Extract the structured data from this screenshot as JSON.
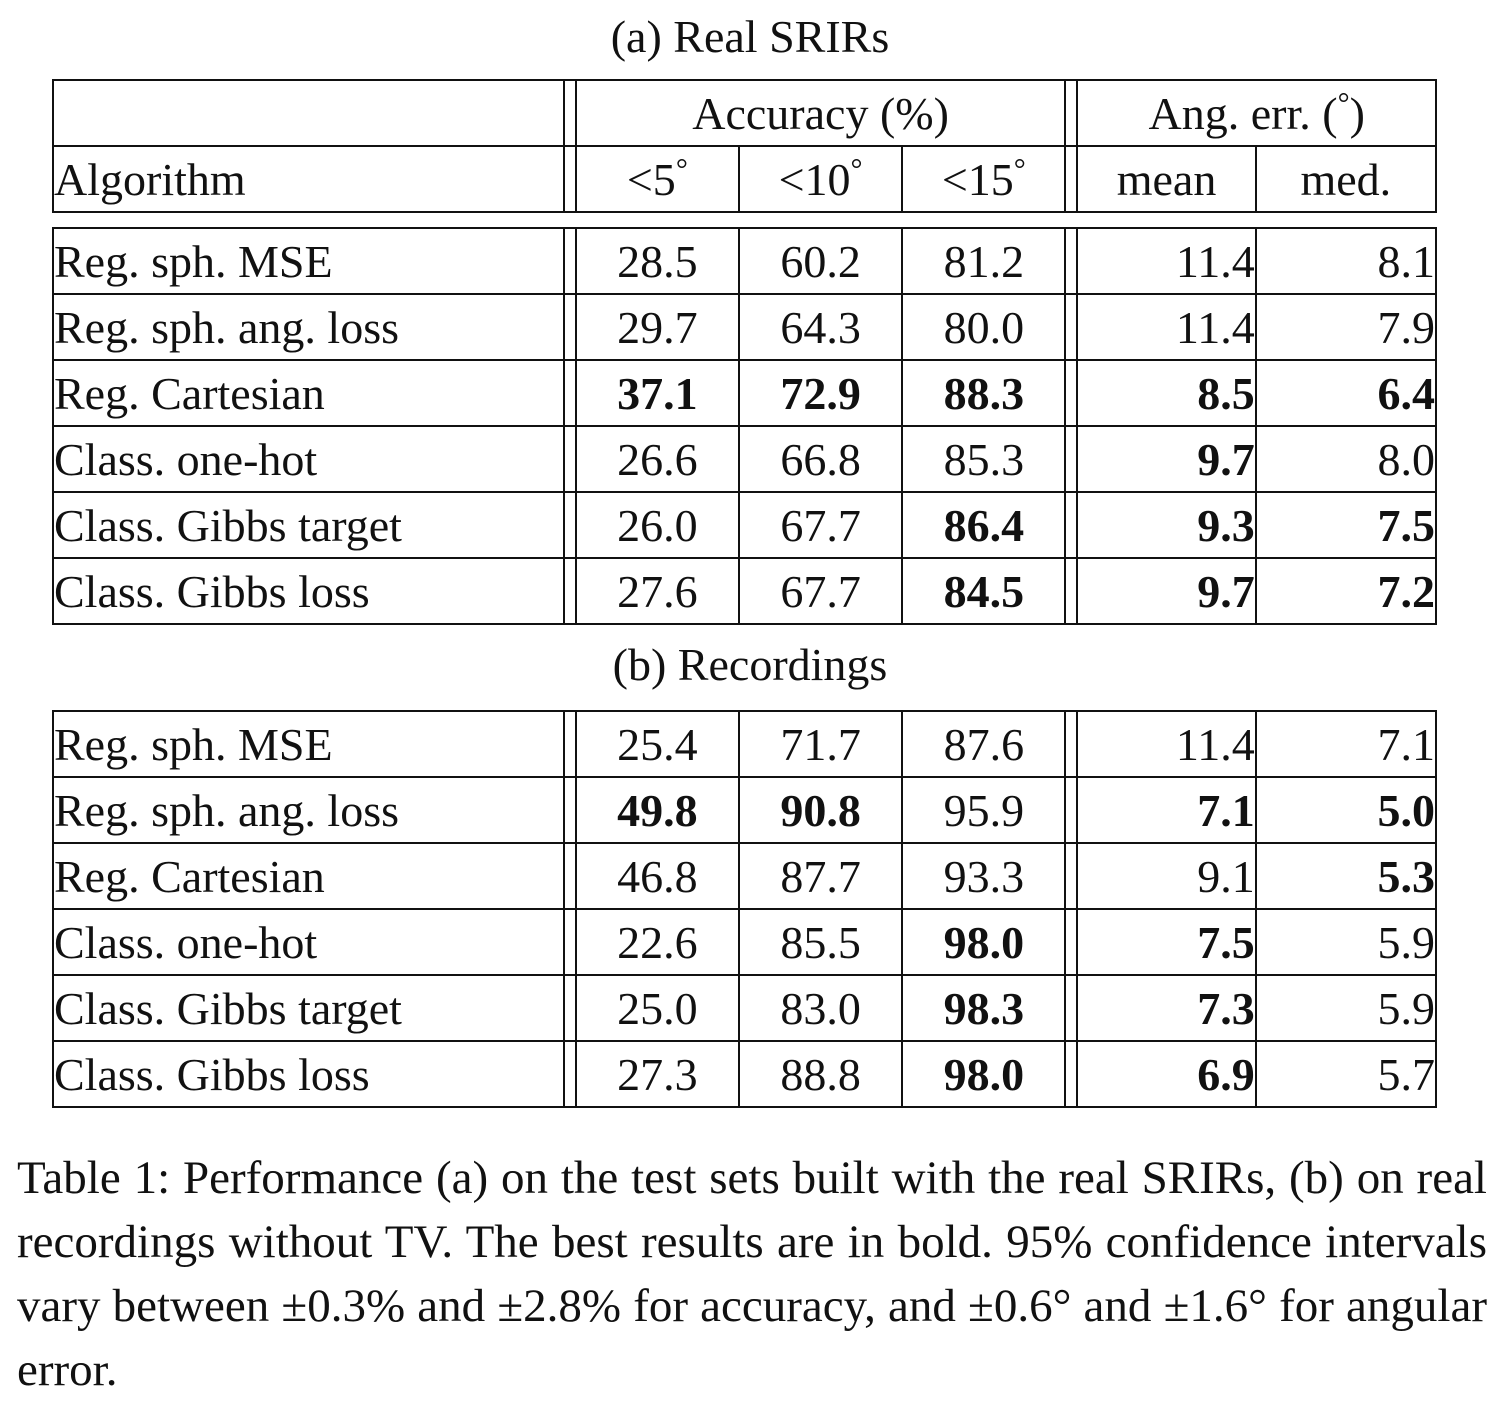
{
  "title_a": "(a) Real SRIRs",
  "title_b": "(b) Recordings",
  "header": {
    "group_accuracy": "Accuracy (%)",
    "group_angerr": "Ang. err. (°)",
    "algorithm": "Algorithm",
    "acc5": "<5°",
    "acc10": "<10°",
    "acc15": "<15°",
    "mean": "mean",
    "med": "med."
  },
  "table_a": [
    {
      "alg": "Reg. sph. MSE",
      "vals": [
        "28.5",
        "60.2",
        "81.2",
        "11.4",
        "8.1"
      ],
      "bold": [
        false,
        false,
        false,
        false,
        false
      ]
    },
    {
      "alg": "Reg. sph. ang. loss",
      "vals": [
        "29.7",
        "64.3",
        "80.0",
        "11.4",
        "7.9"
      ],
      "bold": [
        false,
        false,
        false,
        false,
        false
      ]
    },
    {
      "alg": "Reg. Cartesian",
      "vals": [
        "37.1",
        "72.9",
        "88.3",
        "8.5",
        "6.4"
      ],
      "bold": [
        true,
        true,
        true,
        true,
        true
      ]
    },
    {
      "alg": "Class. one-hot",
      "vals": [
        "26.6",
        "66.8",
        "85.3",
        "9.7",
        "8.0"
      ],
      "bold": [
        false,
        false,
        false,
        true,
        false
      ]
    },
    {
      "alg": "Class. Gibbs target",
      "vals": [
        "26.0",
        "67.7",
        "86.4",
        "9.3",
        "7.5"
      ],
      "bold": [
        false,
        false,
        true,
        true,
        true
      ]
    },
    {
      "alg": "Class. Gibbs loss",
      "vals": [
        "27.6",
        "67.7",
        "84.5",
        "9.7",
        "7.2"
      ],
      "bold": [
        false,
        false,
        true,
        true,
        true
      ]
    }
  ],
  "table_b": [
    {
      "alg": "Reg. sph. MSE",
      "vals": [
        "25.4",
        "71.7",
        "87.6",
        "11.4",
        "7.1"
      ],
      "bold": [
        false,
        false,
        false,
        false,
        false
      ]
    },
    {
      "alg": "Reg. sph. ang. loss",
      "vals": [
        "49.8",
        "90.8",
        "95.9",
        "7.1",
        "5.0"
      ],
      "bold": [
        true,
        true,
        false,
        true,
        true
      ]
    },
    {
      "alg": "Reg. Cartesian",
      "vals": [
        "46.8",
        "87.7",
        "93.3",
        "9.1",
        "5.3"
      ],
      "bold": [
        false,
        false,
        false,
        false,
        true
      ]
    },
    {
      "alg": "Class. one-hot",
      "vals": [
        "22.6",
        "85.5",
        "98.0",
        "7.5",
        "5.9"
      ],
      "bold": [
        false,
        false,
        true,
        true,
        false
      ]
    },
    {
      "alg": "Class. Gibbs target",
      "vals": [
        "25.0",
        "83.0",
        "98.3",
        "7.3",
        "5.9"
      ],
      "bold": [
        false,
        false,
        true,
        true,
        false
      ]
    },
    {
      "alg": "Class. Gibbs loss",
      "vals": [
        "27.3",
        "88.8",
        "98.0",
        "6.9",
        "5.7"
      ],
      "bold": [
        false,
        false,
        true,
        true,
        false
      ]
    }
  ],
  "caption": "Table 1: Performance (a) on the test sets built with the real SRIRs, (b) on real recordings without TV. The best results are in bold. 95% confidence intervals vary between ±0.3% and ±2.8% for accuracy, and ±0.6° and ±1.6° for angular error."
}
